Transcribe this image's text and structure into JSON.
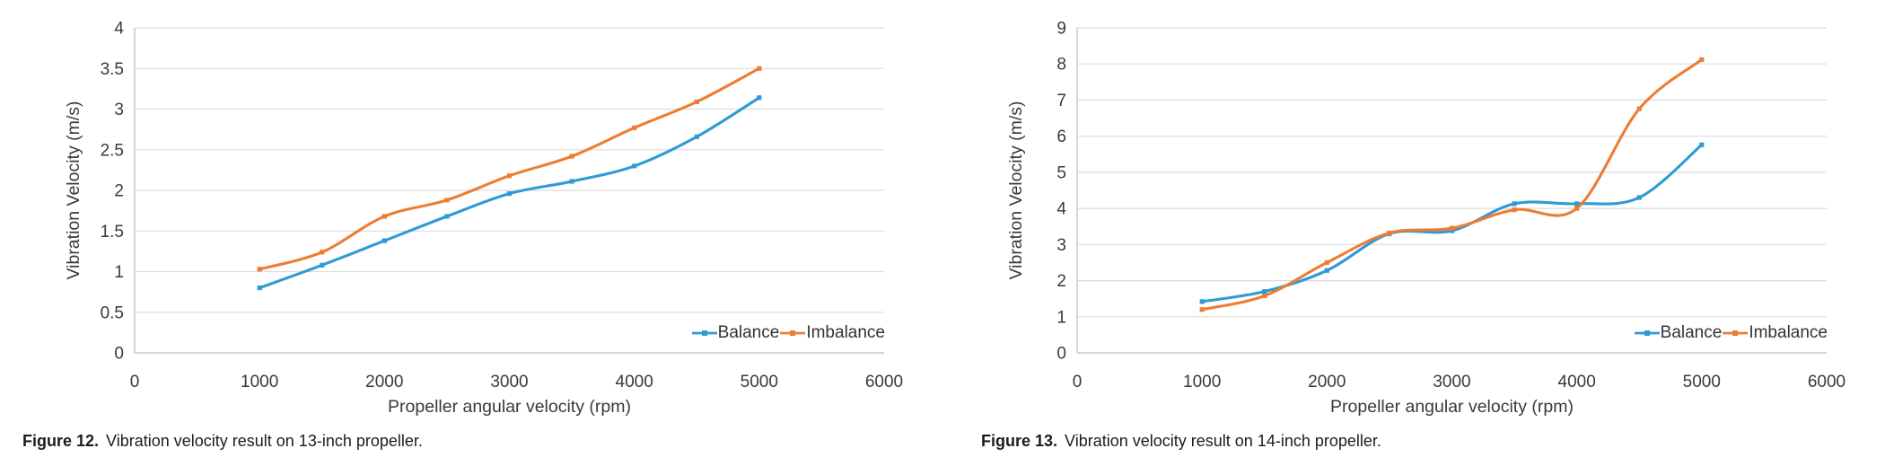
{
  "colors": {
    "balance": "#2E9BD5",
    "imbalance": "#ED7D31",
    "gridline": "#DCDCDC",
    "axis_line": "#C6C6C6",
    "chart_text": "#3a3a3a",
    "caption_text": "#1c1c1c"
  },
  "legend_labels": [
    "Balance",
    "Imbalance"
  ],
  "chart_data": [
    {
      "type": "line",
      "figure_label": "Figure 12.",
      "caption": "Vibration velocity result on 13-inch propeller.",
      "xlabel": "Propeller angular velocity (rpm)",
      "ylabel": "Vibration Velocity (m/s)",
      "xlim": [
        0,
        6000
      ],
      "ylim": [
        0,
        4
      ],
      "x_tick_step": 1000,
      "y_tick_step": 0.5,
      "grid": true,
      "smooth": true,
      "markers": true,
      "legend_position": "inside-bottom-right",
      "x": [
        1000,
        1500,
        2000,
        2500,
        3000,
        3500,
        4000,
        4500,
        5000
      ],
      "series": [
        {
          "name": "Balance",
          "color": "#2E9BD5",
          "values": [
            0.8,
            1.08,
            1.38,
            1.68,
            1.96,
            2.11,
            2.3,
            2.66,
            3.14
          ]
        },
        {
          "name": "Imbalance",
          "color": "#ED7D31",
          "values": [
            1.03,
            1.24,
            1.68,
            1.88,
            2.18,
            2.42,
            2.77,
            3.09,
            3.5
          ]
        }
      ]
    },
    {
      "type": "line",
      "figure_label": "Figure 13.",
      "caption": "Vibration velocity result on 14-inch propeller.",
      "xlabel": "Propeller angular velocity (rpm)",
      "ylabel": "Vibration Velocity (m/s)",
      "xlim": [
        0,
        6000
      ],
      "ylim": [
        0,
        9
      ],
      "x_tick_step": 1000,
      "y_tick_step": 1,
      "grid": true,
      "smooth": true,
      "markers": true,
      "legend_position": "inside-bottom-right",
      "x": [
        1000,
        1500,
        2000,
        2500,
        3000,
        3500,
        4000,
        4500,
        5000
      ],
      "series": [
        {
          "name": "Balance",
          "color": "#2E9BD5",
          "values": [
            1.42,
            1.7,
            2.28,
            3.3,
            3.38,
            4.13,
            4.13,
            4.3,
            5.76
          ]
        },
        {
          "name": "Imbalance",
          "color": "#ED7D31",
          "values": [
            1.2,
            1.58,
            2.5,
            3.32,
            3.45,
            3.96,
            4.0,
            6.76,
            8.12
          ]
        }
      ]
    }
  ]
}
